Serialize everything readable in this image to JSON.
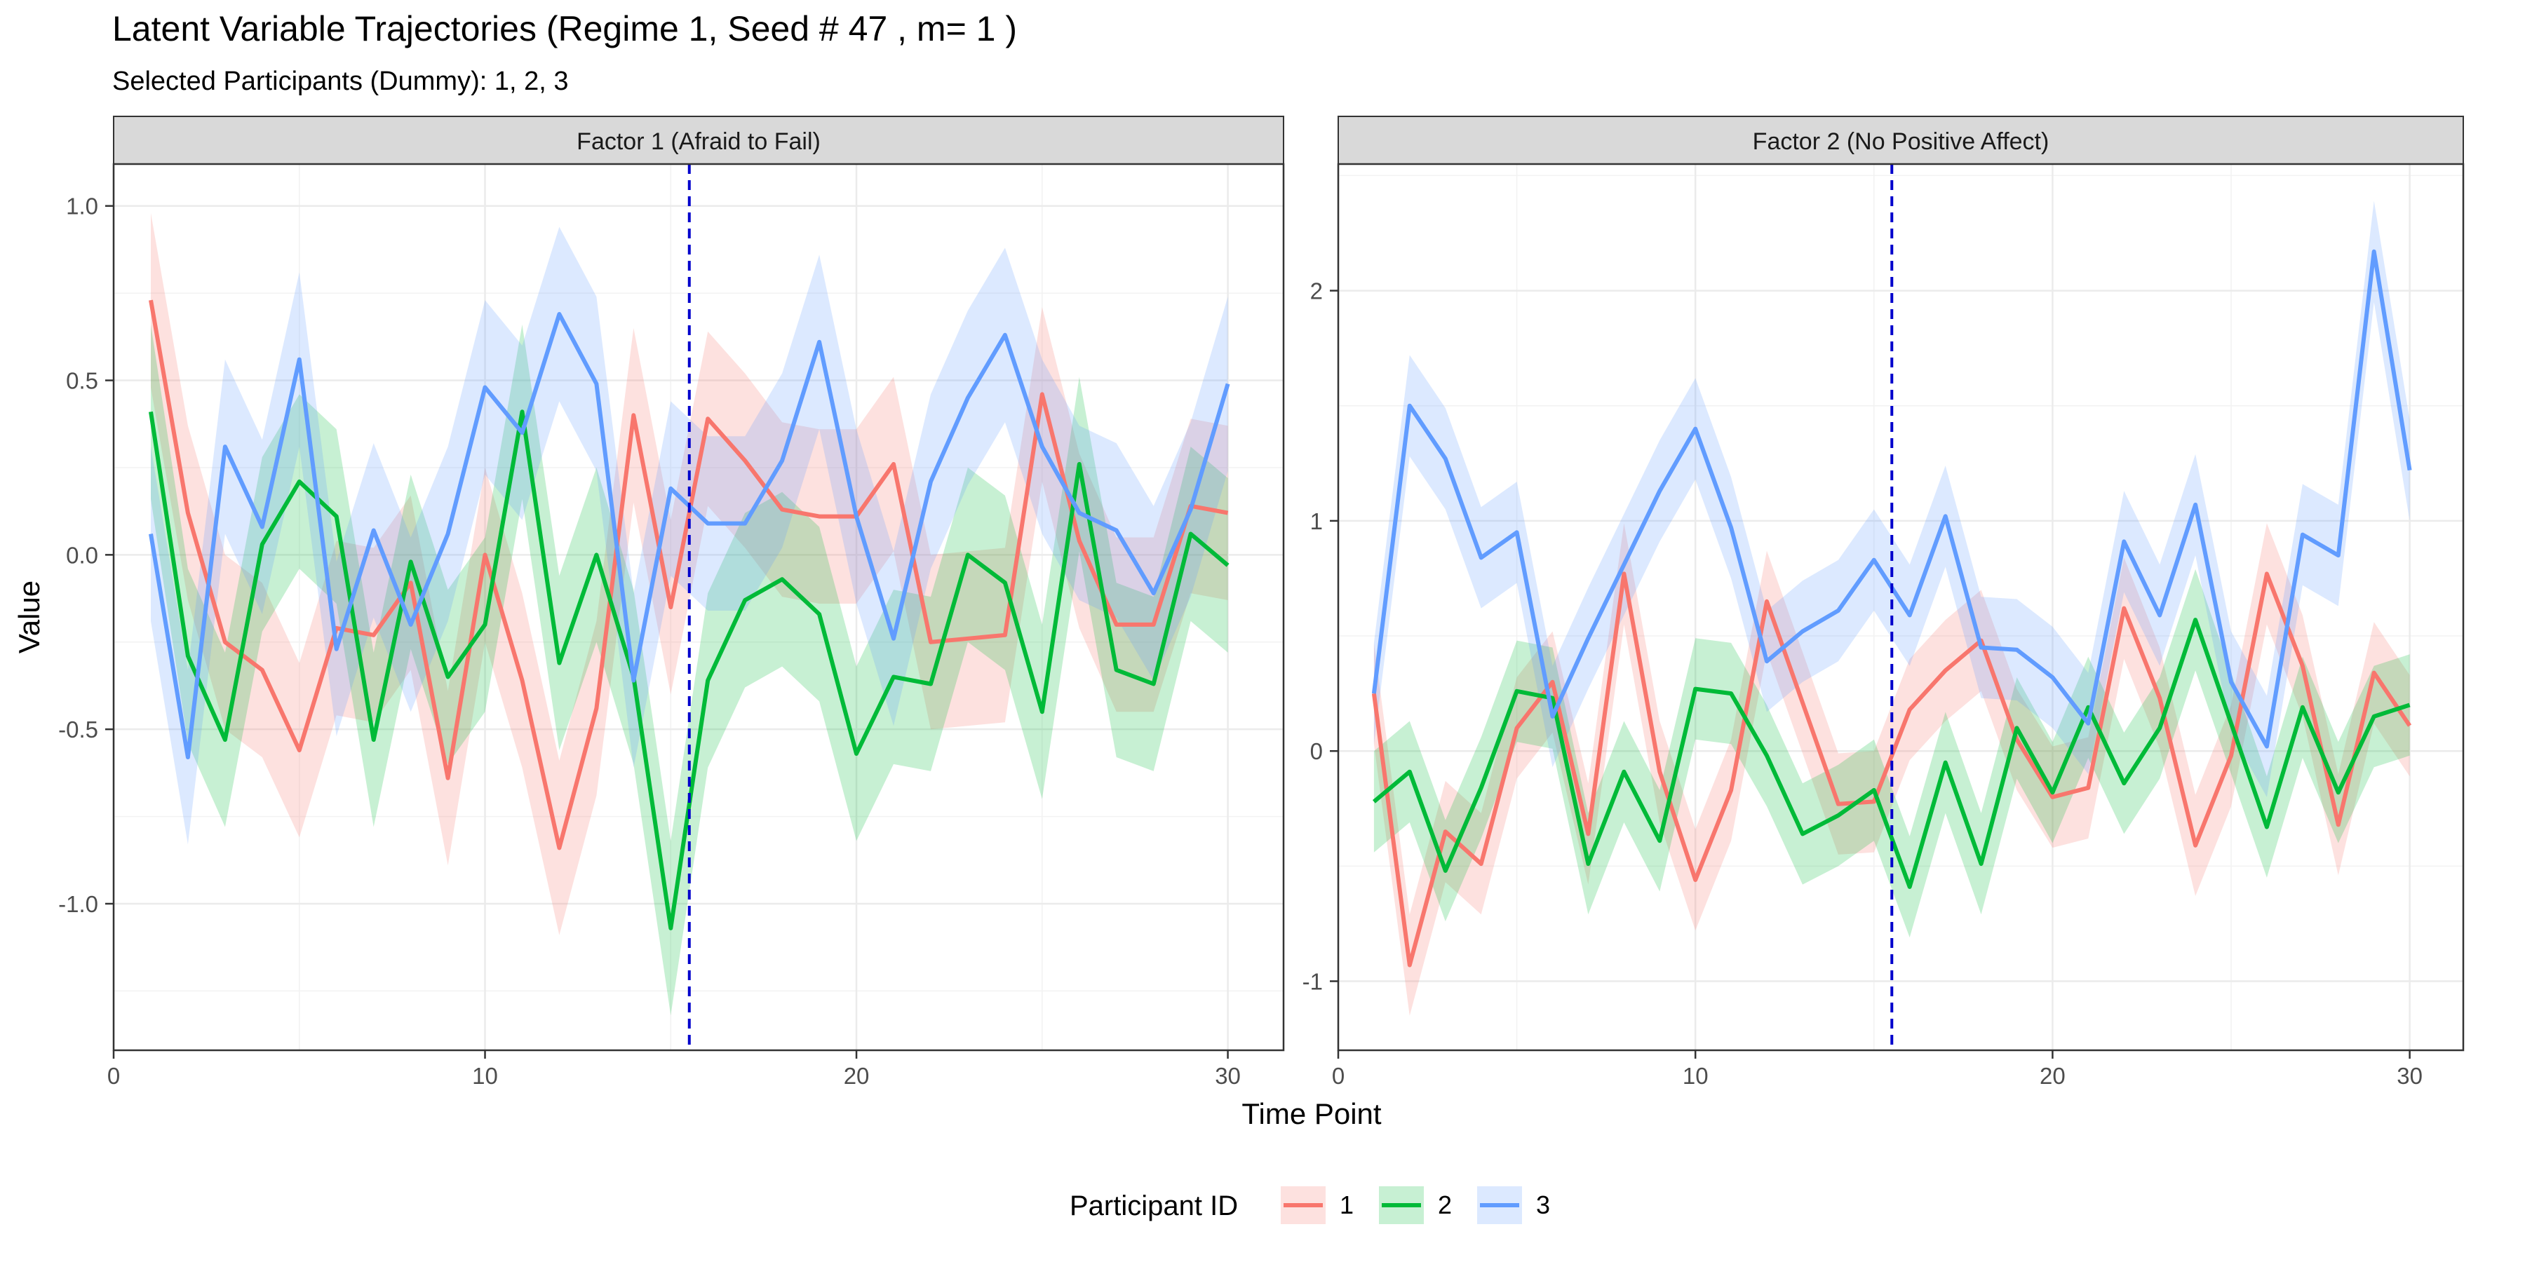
{
  "title": "Latent Variable Trajectories (Regime 1, Seed # 47 , m= 1 )",
  "subtitle": "Selected Participants (Dummy): 1, 2, 3",
  "xlabel": "Time Point",
  "ylabel": "Value",
  "legend": {
    "title": "Participant ID",
    "position": "bottom",
    "entries": [
      {
        "label": "1",
        "color": "#F8766D"
      },
      {
        "label": "2",
        "color": "#00BA38"
      },
      {
        "label": "3",
        "color": "#619CFF"
      }
    ]
  },
  "colors": {
    "p1": "#F8766D",
    "p2": "#00BA38",
    "p3": "#619CFF",
    "vline": "#0000CC",
    "strip": "#D9D9D9"
  },
  "chart_data": [
    {
      "type": "line",
      "panel": "Factor 1 (Afraid to Fail)",
      "xlim": [
        0,
        31.5
      ],
      "ylim": [
        -1.42,
        1.12
      ],
      "xticks": [
        0,
        10,
        20,
        30
      ],
      "yticks": [
        1.0,
        0.5,
        0.0,
        -0.5,
        -1.0
      ],
      "ytick_labels": [
        "1.0",
        "0.5",
        "0.0",
        "-0.5",
        "-1.0"
      ],
      "vline": 15.5,
      "band": 0.25,
      "x": [
        1,
        2,
        3,
        4,
        5,
        6,
        7,
        8,
        9,
        10,
        11,
        12,
        13,
        14,
        15,
        16,
        17,
        18,
        19,
        20,
        21,
        22,
        23,
        24,
        25,
        26,
        27,
        28,
        29,
        30
      ],
      "series": [
        {
          "name": "1",
          "values": [
            0.73,
            0.12,
            -0.25,
            -0.33,
            -0.56,
            -0.21,
            -0.23,
            -0.08,
            -0.64,
            0.0,
            -0.36,
            -0.84,
            -0.44,
            0.4,
            -0.15,
            0.39,
            0.27,
            0.13,
            0.11,
            0.11,
            0.26,
            -0.25,
            -0.24,
            -0.23,
            0.46,
            0.04,
            -0.2,
            -0.2,
            0.14,
            0.12
          ]
        },
        {
          "name": "2",
          "values": [
            0.41,
            -0.29,
            -0.53,
            0.03,
            0.21,
            0.11,
            -0.53,
            -0.02,
            -0.35,
            -0.2,
            0.41,
            -0.31,
            0.0,
            -0.35,
            -1.07,
            -0.36,
            -0.13,
            -0.07,
            -0.17,
            -0.57,
            -0.35,
            -0.37,
            0.0,
            -0.08,
            -0.45,
            0.26,
            -0.33,
            -0.37,
            0.06,
            -0.03
          ]
        },
        {
          "name": "3",
          "values": [
            0.06,
            -0.58,
            0.31,
            0.08,
            0.56,
            -0.27,
            0.07,
            -0.2,
            0.06,
            0.48,
            0.35,
            0.69,
            0.49,
            -0.36,
            0.19,
            0.09,
            0.09,
            0.27,
            0.61,
            0.11,
            -0.24,
            0.21,
            0.45,
            0.63,
            0.31,
            0.12,
            0.07,
            -0.11,
            0.13,
            0.49
          ]
        }
      ]
    },
    {
      "type": "line",
      "panel": "Factor 2 (No Positive Affect)",
      "xlim": [
        0,
        31.5
      ],
      "ylim": [
        -1.3,
        2.55
      ],
      "xticks": [
        0,
        10,
        20,
        30
      ],
      "yticks": [
        2,
        1,
        0,
        -1
      ],
      "ytick_labels": [
        "2",
        "1",
        "0",
        "-1"
      ],
      "vline": 15.5,
      "band": 0.22,
      "x": [
        1,
        2,
        3,
        4,
        5,
        6,
        7,
        8,
        9,
        10,
        11,
        12,
        13,
        14,
        15,
        16,
        17,
        18,
        19,
        20,
        21,
        22,
        23,
        24,
        25,
        26,
        27,
        28,
        29,
        30
      ],
      "series": [
        {
          "name": "1",
          "values": [
            0.25,
            -0.93,
            -0.35,
            -0.49,
            0.1,
            0.3,
            -0.36,
            0.77,
            -0.09,
            -0.56,
            -0.17,
            0.65,
            0.21,
            -0.23,
            -0.22,
            0.18,
            0.35,
            0.48,
            0.05,
            -0.2,
            -0.16,
            0.62,
            0.23,
            -0.41,
            -0.02,
            0.77,
            0.37,
            -0.32,
            0.34,
            0.11
          ]
        },
        {
          "name": "2",
          "values": [
            -0.22,
            -0.09,
            -0.52,
            -0.16,
            0.26,
            0.23,
            -0.49,
            -0.09,
            -0.39,
            0.27,
            0.25,
            -0.02,
            -0.36,
            -0.28,
            -0.17,
            -0.59,
            -0.05,
            -0.49,
            0.1,
            -0.18,
            0.19,
            -0.14,
            0.1,
            0.57,
            0.12,
            -0.33,
            0.19,
            -0.18,
            0.15,
            0.2
          ]
        },
        {
          "name": "3",
          "values": [
            0.25,
            1.5,
            1.27,
            0.84,
            0.95,
            0.15,
            0.49,
            0.81,
            1.13,
            1.4,
            0.97,
            0.39,
            0.52,
            0.61,
            0.83,
            0.59,
            1.02,
            0.45,
            0.44,
            0.32,
            0.12,
            0.91,
            0.59,
            1.07,
            0.3,
            0.02,
            0.94,
            0.85,
            2.17,
            1.22
          ]
        }
      ]
    }
  ]
}
